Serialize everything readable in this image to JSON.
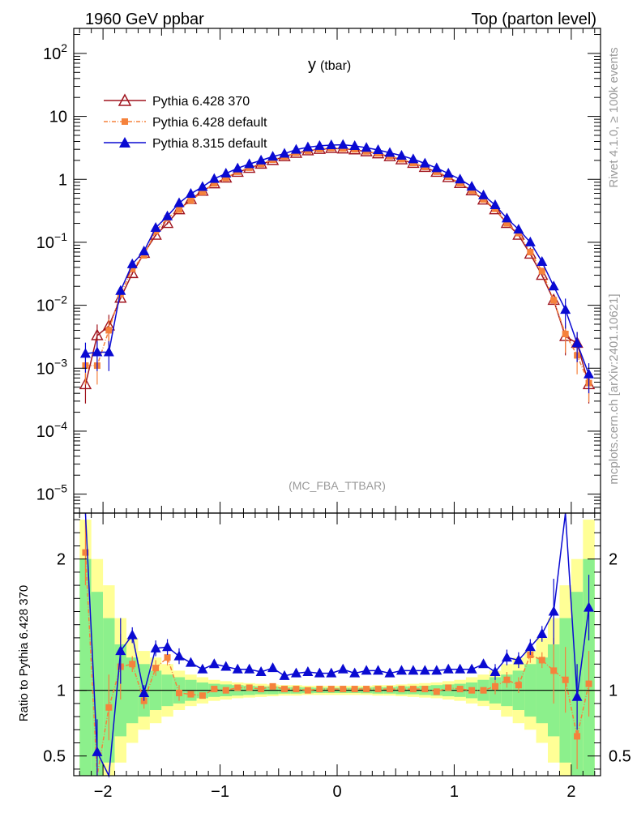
{
  "header": {
    "left": "1960 GeV ppbar",
    "right": "Top (parton level)"
  },
  "side_labels": {
    "rivet": "Rivet 4.1.0, ≥ 100k events",
    "source": "mcplots.cern.ch [arXiv:2401.10621]"
  },
  "colors": {
    "p6_370": "#a0141e",
    "p6_default": "#f5823c",
    "p8": "#0a0ad2",
    "band_inner": "#8cf08c",
    "band_outer": "#ffff96"
  },
  "chart_data": {
    "type": "line",
    "title": "y",
    "title_sub": "(tbar)",
    "watermark": "(MC_FBA_TTBAR)",
    "xlim": [
      -2.25,
      2.25
    ],
    "ylim_main": [
      5e-06,
      250
    ],
    "ylim_ratio": [
      0.35,
      2.35
    ],
    "ratio_ylabel": "Ratio to Pythia 6.428 370",
    "x_ticks": [
      -2,
      -1,
      0,
      1,
      2
    ],
    "x_tick_labels": [
      "−2",
      "−1",
      "0",
      "1",
      "2"
    ],
    "y_main_ticks": [
      {
        "v": 100,
        "m": "10",
        "e": "2"
      },
      {
        "v": 10,
        "m": "10",
        "e": ""
      },
      {
        "v": 1,
        "m": "1",
        "e": ""
      },
      {
        "v": 0.1,
        "m": "10",
        "e": "−1"
      },
      {
        "v": 0.01,
        "m": "10",
        "e": "−2"
      },
      {
        "v": 0.001,
        "m": "10",
        "e": "−3"
      },
      {
        "v": 0.0001,
        "m": "10",
        "e": "−4"
      },
      {
        "v": 1e-05,
        "m": "10",
        "e": "−5"
      }
    ],
    "y_ratio_ticks": [
      {
        "v": 2,
        "label": "2"
      },
      {
        "v": 1,
        "label": "1"
      },
      {
        "v": 0.5,
        "label": "0.5"
      }
    ],
    "x": [
      -2.15,
      -2.05,
      -1.95,
      -1.85,
      -1.75,
      -1.65,
      -1.55,
      -1.45,
      -1.35,
      -1.25,
      -1.15,
      -1.05,
      -0.95,
      -0.85,
      -0.75,
      -0.65,
      -0.55,
      -0.45,
      -0.35,
      -0.25,
      -0.15,
      -0.05,
      0.05,
      0.15,
      0.25,
      0.35,
      0.45,
      0.55,
      0.65,
      0.75,
      0.85,
      0.95,
      1.05,
      1.15,
      1.25,
      1.35,
      1.45,
      1.55,
      1.65,
      1.75,
      1.85,
      1.95,
      2.05,
      2.15
    ],
    "series": [
      {
        "name": "Pythia 6.428 370",
        "marker": "triangle-open",
        "values": [
          0.00055,
          0.0033,
          0.0047,
          0.013,
          0.032,
          0.067,
          0.13,
          0.2,
          0.33,
          0.48,
          0.65,
          0.85,
          1.05,
          1.3,
          1.5,
          1.75,
          2.0,
          2.3,
          2.6,
          2.85,
          3.0,
          3.1,
          3.05,
          2.95,
          2.75,
          2.55,
          2.3,
          2.05,
          1.8,
          1.55,
          1.3,
          1.07,
          0.86,
          0.66,
          0.47,
          0.33,
          0.2,
          0.13,
          0.065,
          0.03,
          0.012,
          0.0032,
          0.0025,
          0.00055
        ],
        "ratio": [
          1,
          1,
          1,
          1,
          1,
          1,
          1,
          1,
          1,
          1,
          1,
          1,
          1,
          1,
          1,
          1,
          1,
          1,
          1,
          1,
          1,
          1,
          1,
          1,
          1,
          1,
          1,
          1,
          1,
          1,
          1,
          1,
          1,
          1,
          1,
          1,
          1,
          1,
          1,
          1,
          1,
          1,
          1,
          1
        ]
      },
      {
        "name": "Pythia 6.428 default",
        "marker": "square",
        "values": [
          0.0011,
          0.0011,
          0.004,
          0.015,
          0.038,
          0.062,
          0.15,
          0.24,
          0.33,
          0.46,
          0.63,
          0.86,
          1.05,
          1.32,
          1.53,
          1.76,
          2.05,
          2.3,
          2.64,
          2.85,
          3.03,
          3.14,
          3.08,
          2.99,
          2.78,
          2.58,
          2.33,
          2.08,
          1.82,
          1.57,
          1.32,
          1.1,
          0.87,
          0.66,
          0.48,
          0.34,
          0.2,
          0.14,
          0.07,
          0.035,
          0.012,
          0.0035,
          0.0016,
          0.00058
        ],
        "ratio": [
          2.05,
          0.24,
          0.87,
          1.18,
          1.2,
          0.92,
          1.17,
          1.25,
          0.98,
          0.97,
          0.96,
          1.01,
          1.0,
          1.02,
          1.02,
          1.01,
          1.03,
          1.01,
          1.01,
          1.0,
          1.01,
          1.01,
          1.01,
          1.01,
          1.01,
          1.01,
          1.01,
          1.01,
          1.01,
          1.01,
          0.99,
          1.02,
          1.01,
          1.0,
          1.0,
          1.03,
          1.08,
          1.04,
          1.27,
          1.23,
          1.15,
          1.08,
          0.65,
          1.05
        ]
      },
      {
        "name": "Pythia 8.315 default",
        "marker": "triangle",
        "values": [
          0.0017,
          0.0018,
          0.0018,
          0.017,
          0.045,
          0.072,
          0.17,
          0.26,
          0.42,
          0.59,
          0.76,
          1.02,
          1.24,
          1.5,
          1.75,
          2.0,
          2.3,
          2.56,
          2.96,
          3.24,
          3.41,
          3.5,
          3.54,
          3.4,
          3.18,
          2.93,
          2.64,
          2.38,
          2.09,
          1.79,
          1.51,
          1.24,
          1.0,
          0.77,
          0.56,
          0.39,
          0.24,
          0.16,
          0.1,
          0.049,
          0.02,
          0.0085,
          0.0025,
          0.0008
        ],
        "ratio": [
          3.1,
          0.53,
          0.33,
          1.3,
          1.42,
          0.98,
          1.32,
          1.33,
          1.26,
          1.21,
          1.16,
          1.2,
          1.18,
          1.16,
          1.16,
          1.14,
          1.17,
          1.11,
          1.13,
          1.14,
          1.13,
          1.13,
          1.16,
          1.13,
          1.15,
          1.15,
          1.13,
          1.15,
          1.15,
          1.15,
          1.15,
          1.16,
          1.16,
          1.16,
          1.2,
          1.14,
          1.25,
          1.23,
          1.33,
          1.43,
          1.6,
          2.5,
          0.95,
          1.63
        ]
      }
    ],
    "band_inner": [
      1.0,
      0.75,
      0.55,
      0.35,
      0.25,
      0.2,
      0.15,
      0.12,
      0.1,
      0.08,
      0.06,
      0.05,
      0.045,
      0.04,
      0.035,
      0.03,
      0.03,
      0.025,
      0.025,
      0.022,
      0.02,
      0.02,
      0.02,
      0.02,
      0.022,
      0.025,
      0.025,
      0.03,
      0.03,
      0.035,
      0.04,
      0.045,
      0.05,
      0.06,
      0.08,
      0.1,
      0.12,
      0.15,
      0.2,
      0.25,
      0.35,
      0.55,
      0.75,
      1.0
    ],
    "band_outer": [
      1.3,
      1.0,
      0.8,
      0.55,
      0.4,
      0.3,
      0.25,
      0.2,
      0.15,
      0.12,
      0.1,
      0.08,
      0.07,
      0.06,
      0.055,
      0.05,
      0.045,
      0.04,
      0.04,
      0.035,
      0.035,
      0.035,
      0.035,
      0.035,
      0.035,
      0.04,
      0.04,
      0.045,
      0.05,
      0.055,
      0.06,
      0.07,
      0.08,
      0.1,
      0.12,
      0.15,
      0.2,
      0.25,
      0.3,
      0.4,
      0.55,
      0.8,
      1.0,
      1.3
    ]
  }
}
